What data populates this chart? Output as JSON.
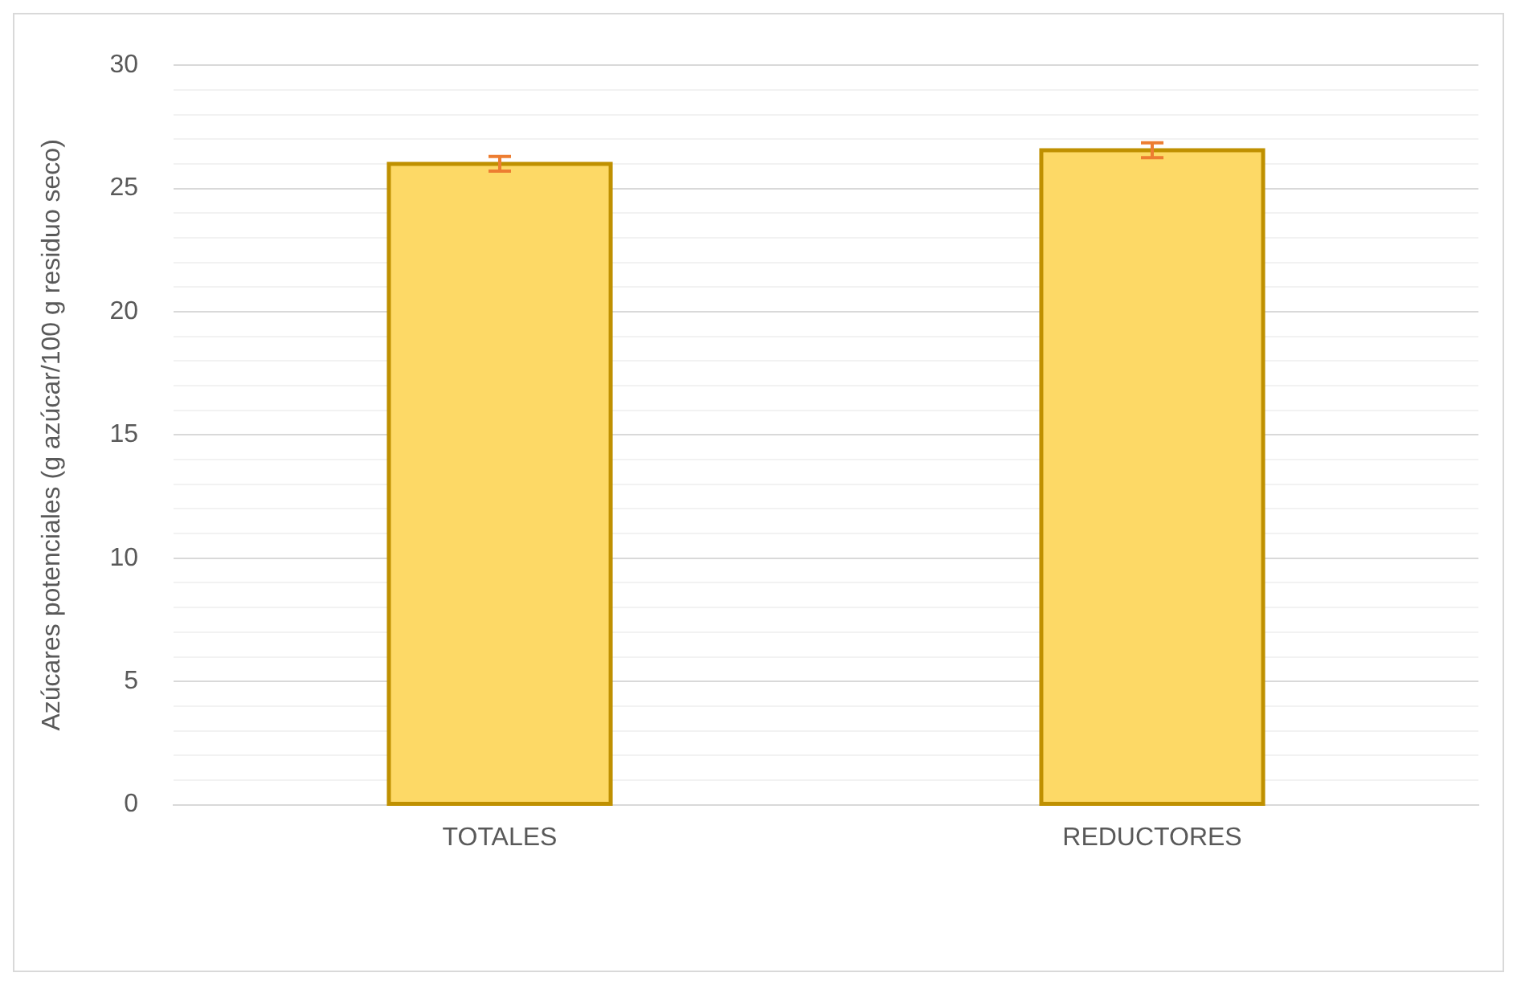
{
  "chart_data": {
    "type": "bar",
    "ylabel": "Azúcares potenciales (g azúcar/100 g residuo seco)",
    "categories": [
      "TOTALES",
      "REDUCTORES"
    ],
    "values": [
      26.0,
      26.55
    ],
    "errors": [
      0.3,
      0.3
    ],
    "color": "#fdd966",
    "ylim": [
      0,
      30
    ],
    "yticks": [
      0,
      {
        "value": 1,
        "label": null
      },
      {
        "value": 2,
        "label": null
      },
      {
        "value": 3,
        "label": null
      },
      {
        "value": 4,
        "label": null
      },
      5,
      {
        "value": 6,
        "label": null
      },
      {
        "value": 7,
        "label": null
      },
      {
        "value": 8,
        "label": null
      },
      {
        "value": 9,
        "label": null
      },
      10,
      {
        "value": 11,
        "label": null
      },
      {
        "value": 12,
        "label": null
      },
      {
        "value": 13,
        "label": null
      },
      {
        "value": 14,
        "label": null
      },
      15,
      {
        "value": 16,
        "label": null
      },
      {
        "value": 17,
        "label": null
      },
      {
        "value": 18,
        "label": null
      },
      {
        "value": 19,
        "label": null
      },
      20,
      {
        "value": 21,
        "label": null
      },
      {
        "value": 22,
        "label": null
      },
      {
        "value": 23,
        "label": null
      },
      {
        "value": 24,
        "label": null
      },
      25,
      {
        "value": 26,
        "label": null
      },
      {
        "value": 27,
        "label": null
      },
      {
        "value": 28,
        "label": null
      },
      {
        "value": 29,
        "label": null
      },
      30
    ],
    "grid": "y",
    "legend": false
  }
}
